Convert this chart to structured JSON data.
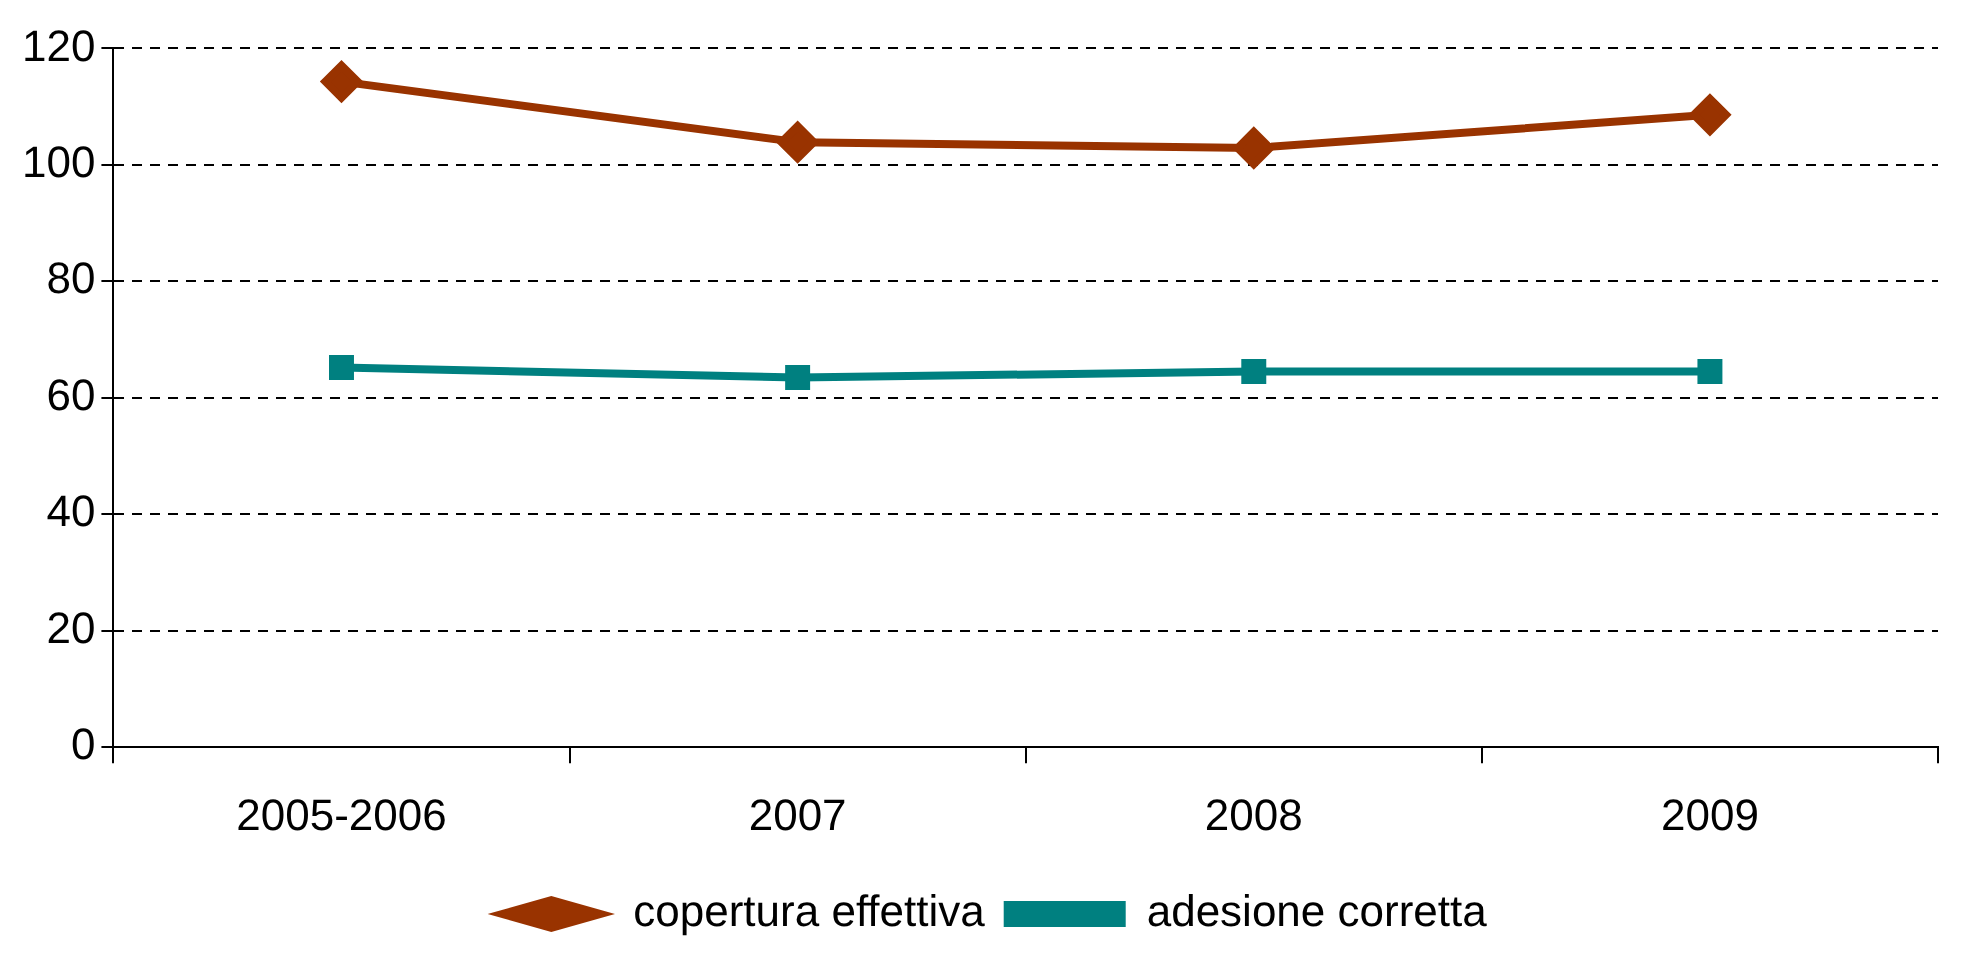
{
  "chart_data": {
    "type": "line",
    "categories": [
      "2005-2006",
      "2007",
      "2008",
      "2009"
    ],
    "series": [
      {
        "name": "copertura effettiva",
        "color": "#993300",
        "marker": "diamond",
        "values": [
          114.3,
          103.9,
          102.9,
          108.6
        ]
      },
      {
        "name": "adesione corretta",
        "color": "#008080",
        "marker": "square",
        "values": [
          65.2,
          63.5,
          64.5,
          64.5
        ]
      }
    ],
    "ylim": [
      0,
      120
    ],
    "yticks": [
      0,
      20,
      40,
      60,
      80,
      100,
      120
    ],
    "grid": "y",
    "legend": "bottom",
    "line_style": "solid"
  }
}
